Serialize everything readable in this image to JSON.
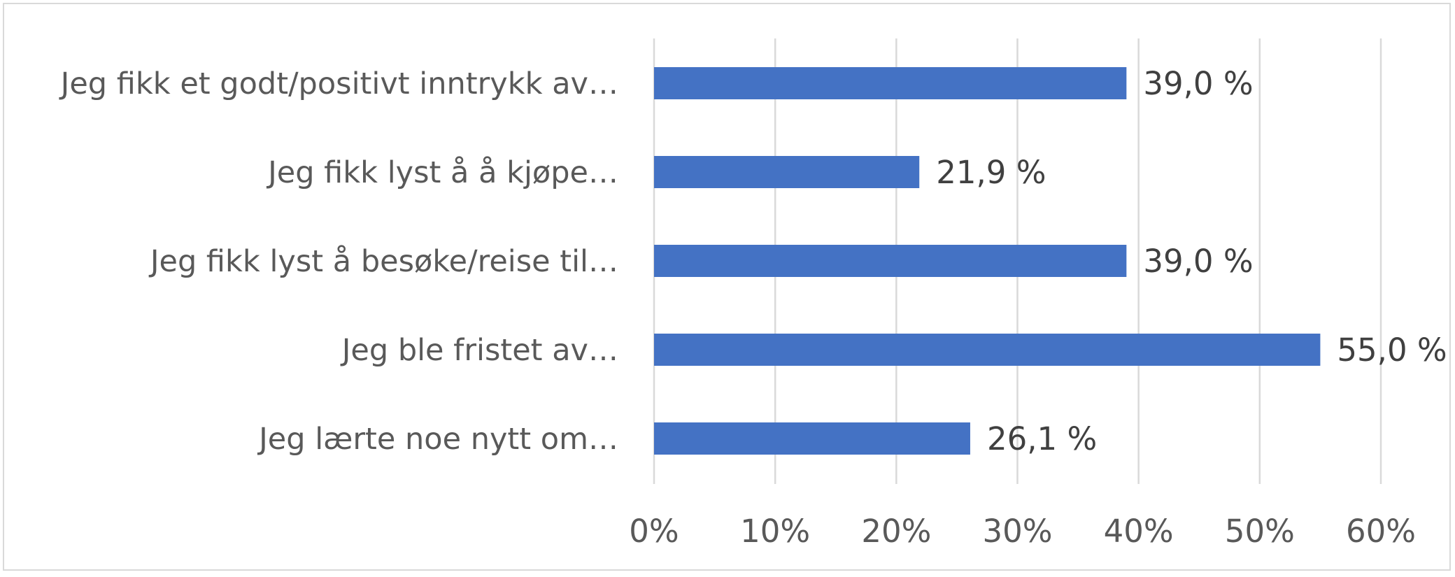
{
  "chart_data": {
    "type": "bar",
    "orientation": "horizontal",
    "categories": [
      "Jeg fikk et godt/positivt inntrykk av…",
      "Jeg fikk lyst å å kjøpe…",
      "Jeg fikk lyst å besøke/reise til…",
      "Jeg ble fristet av…",
      "Jeg lærte noe nytt om…"
    ],
    "values": [
      39.0,
      21.9,
      39.0,
      55.0,
      26.1
    ],
    "data_labels": [
      "39,0 %",
      "21,9 %",
      "39,0 %",
      "55,0 %",
      "26,1 %"
    ],
    "x_ticks": [
      "0%",
      "10%",
      "20%",
      "30%",
      "40%",
      "50%",
      "60%"
    ],
    "xlim": [
      0,
      60
    ],
    "title": "",
    "xlabel": "",
    "ylabel": "",
    "grid": "vertical",
    "legend": "none",
    "colors": {
      "bar": "#4472c4",
      "grid": "#d9d9d9"
    }
  }
}
